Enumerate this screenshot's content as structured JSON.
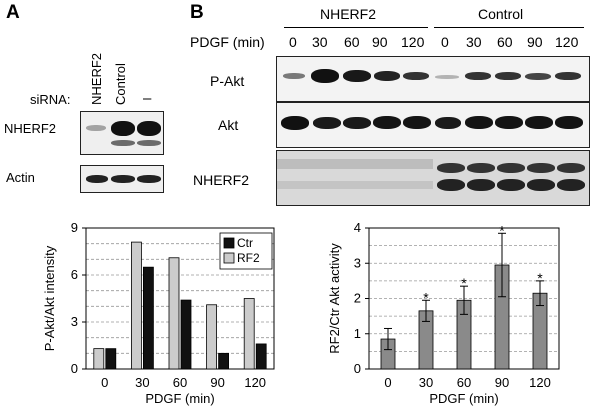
{
  "panel_a": {
    "label": "A",
    "col_headers": [
      "NHERF2",
      "Control",
      "–"
    ],
    "sirna_label": "siRNA:",
    "blot_labels": [
      "NHERF2",
      "Actin"
    ]
  },
  "panel_b": {
    "label": "B",
    "groups": [
      "NHERF2",
      "Control"
    ],
    "pdgf_label": "PDGF (min)",
    "timepoints": [
      "0",
      "30",
      "60",
      "90",
      "120",
      "0",
      "30",
      "60",
      "90",
      "120"
    ],
    "blot_labels": [
      "P-Akt",
      "Akt",
      "NHERF2"
    ]
  },
  "chart_data": [
    {
      "type": "bar",
      "categories": [
        "0",
        "30",
        "60",
        "90",
        "120"
      ],
      "series": [
        {
          "name": "Ctr",
          "values": [
            1.3,
            6.5,
            4.4,
            1.0,
            1.6
          ],
          "color": "#111111"
        },
        {
          "name": "RF2",
          "values": [
            1.3,
            8.1,
            7.1,
            4.1,
            4.5
          ],
          "color": "#cccccc"
        }
      ],
      "xlabel": "PDGF (min)",
      "ylabel": "P-Akt/Akt intensity",
      "ylim": [
        0,
        9
      ],
      "yticks": [
        "0",
        "3",
        "6",
        "9"
      ],
      "grid": true,
      "legend": "top-right"
    },
    {
      "type": "bar",
      "categories": [
        "0",
        "30",
        "60",
        "90",
        "120"
      ],
      "values": [
        0.85,
        1.65,
        1.95,
        2.95,
        2.15
      ],
      "errors": [
        0.3,
        0.3,
        0.4,
        0.9,
        0.35
      ],
      "annotations": [
        "",
        "*",
        "*",
        "*",
        "*"
      ],
      "xlabel": "PDGF (min)",
      "ylabel": "RF2/Ctr Akt activity",
      "ylim": [
        0,
        4
      ],
      "yticks": [
        "0",
        "1",
        "2",
        "3",
        "4"
      ],
      "grid": true,
      "color": "#8a8a8a"
    }
  ]
}
